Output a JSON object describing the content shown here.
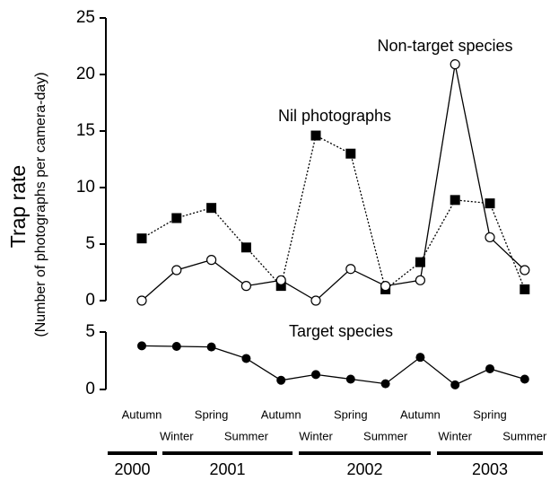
{
  "y_label": "Trap rate",
  "y_sublabel": "(Number of photographs per camera-day)",
  "years": [
    "2000",
    "2001",
    "2002",
    "2003"
  ],
  "chart_data": [
    {
      "type": "line",
      "categories": [
        "Autumn",
        "Winter",
        "Spring",
        "Summer",
        "Autumn",
        "Winter",
        "Spring",
        "Summer",
        "Autumn",
        "Winter",
        "Spring",
        "Summer"
      ],
      "ylim": [
        0,
        25
      ],
      "yticks": [
        0,
        5,
        10,
        15,
        20,
        25
      ],
      "series": [
        {
          "name": "Nil photographs",
          "color": "#000000",
          "line_style": "dotted",
          "marker": "filled-square",
          "values": [
            5.5,
            7.3,
            8.2,
            4.7,
            1.3,
            14.6,
            13.0,
            1.0,
            3.4,
            8.9,
            8.6,
            1.0
          ]
        },
        {
          "name": "Non-target species",
          "color": "#000000",
          "line_style": "solid",
          "marker": "open-circle",
          "values": [
            0,
            2.7,
            3.6,
            1.3,
            1.8,
            0,
            2.8,
            1.3,
            1.8,
            20.9,
            5.6,
            2.7
          ]
        }
      ]
    },
    {
      "type": "line",
      "categories": [
        "Autumn",
        "Winter",
        "Spring",
        "Summer",
        "Autumn",
        "Winter",
        "Spring",
        "Summer",
        "Autumn",
        "Winter",
        "Spring",
        "Summer"
      ],
      "ylim": [
        0,
        5
      ],
      "yticks": [
        0,
        5
      ],
      "series": [
        {
          "name": "Target species",
          "color": "#000000",
          "line_style": "solid",
          "marker": "filled-circle",
          "values": [
            3.8,
            3.75,
            3.7,
            2.7,
            0.8,
            1.3,
            0.9,
            0.5,
            2.8,
            0.4,
            1.8,
            0.9
          ]
        }
      ]
    }
  ]
}
